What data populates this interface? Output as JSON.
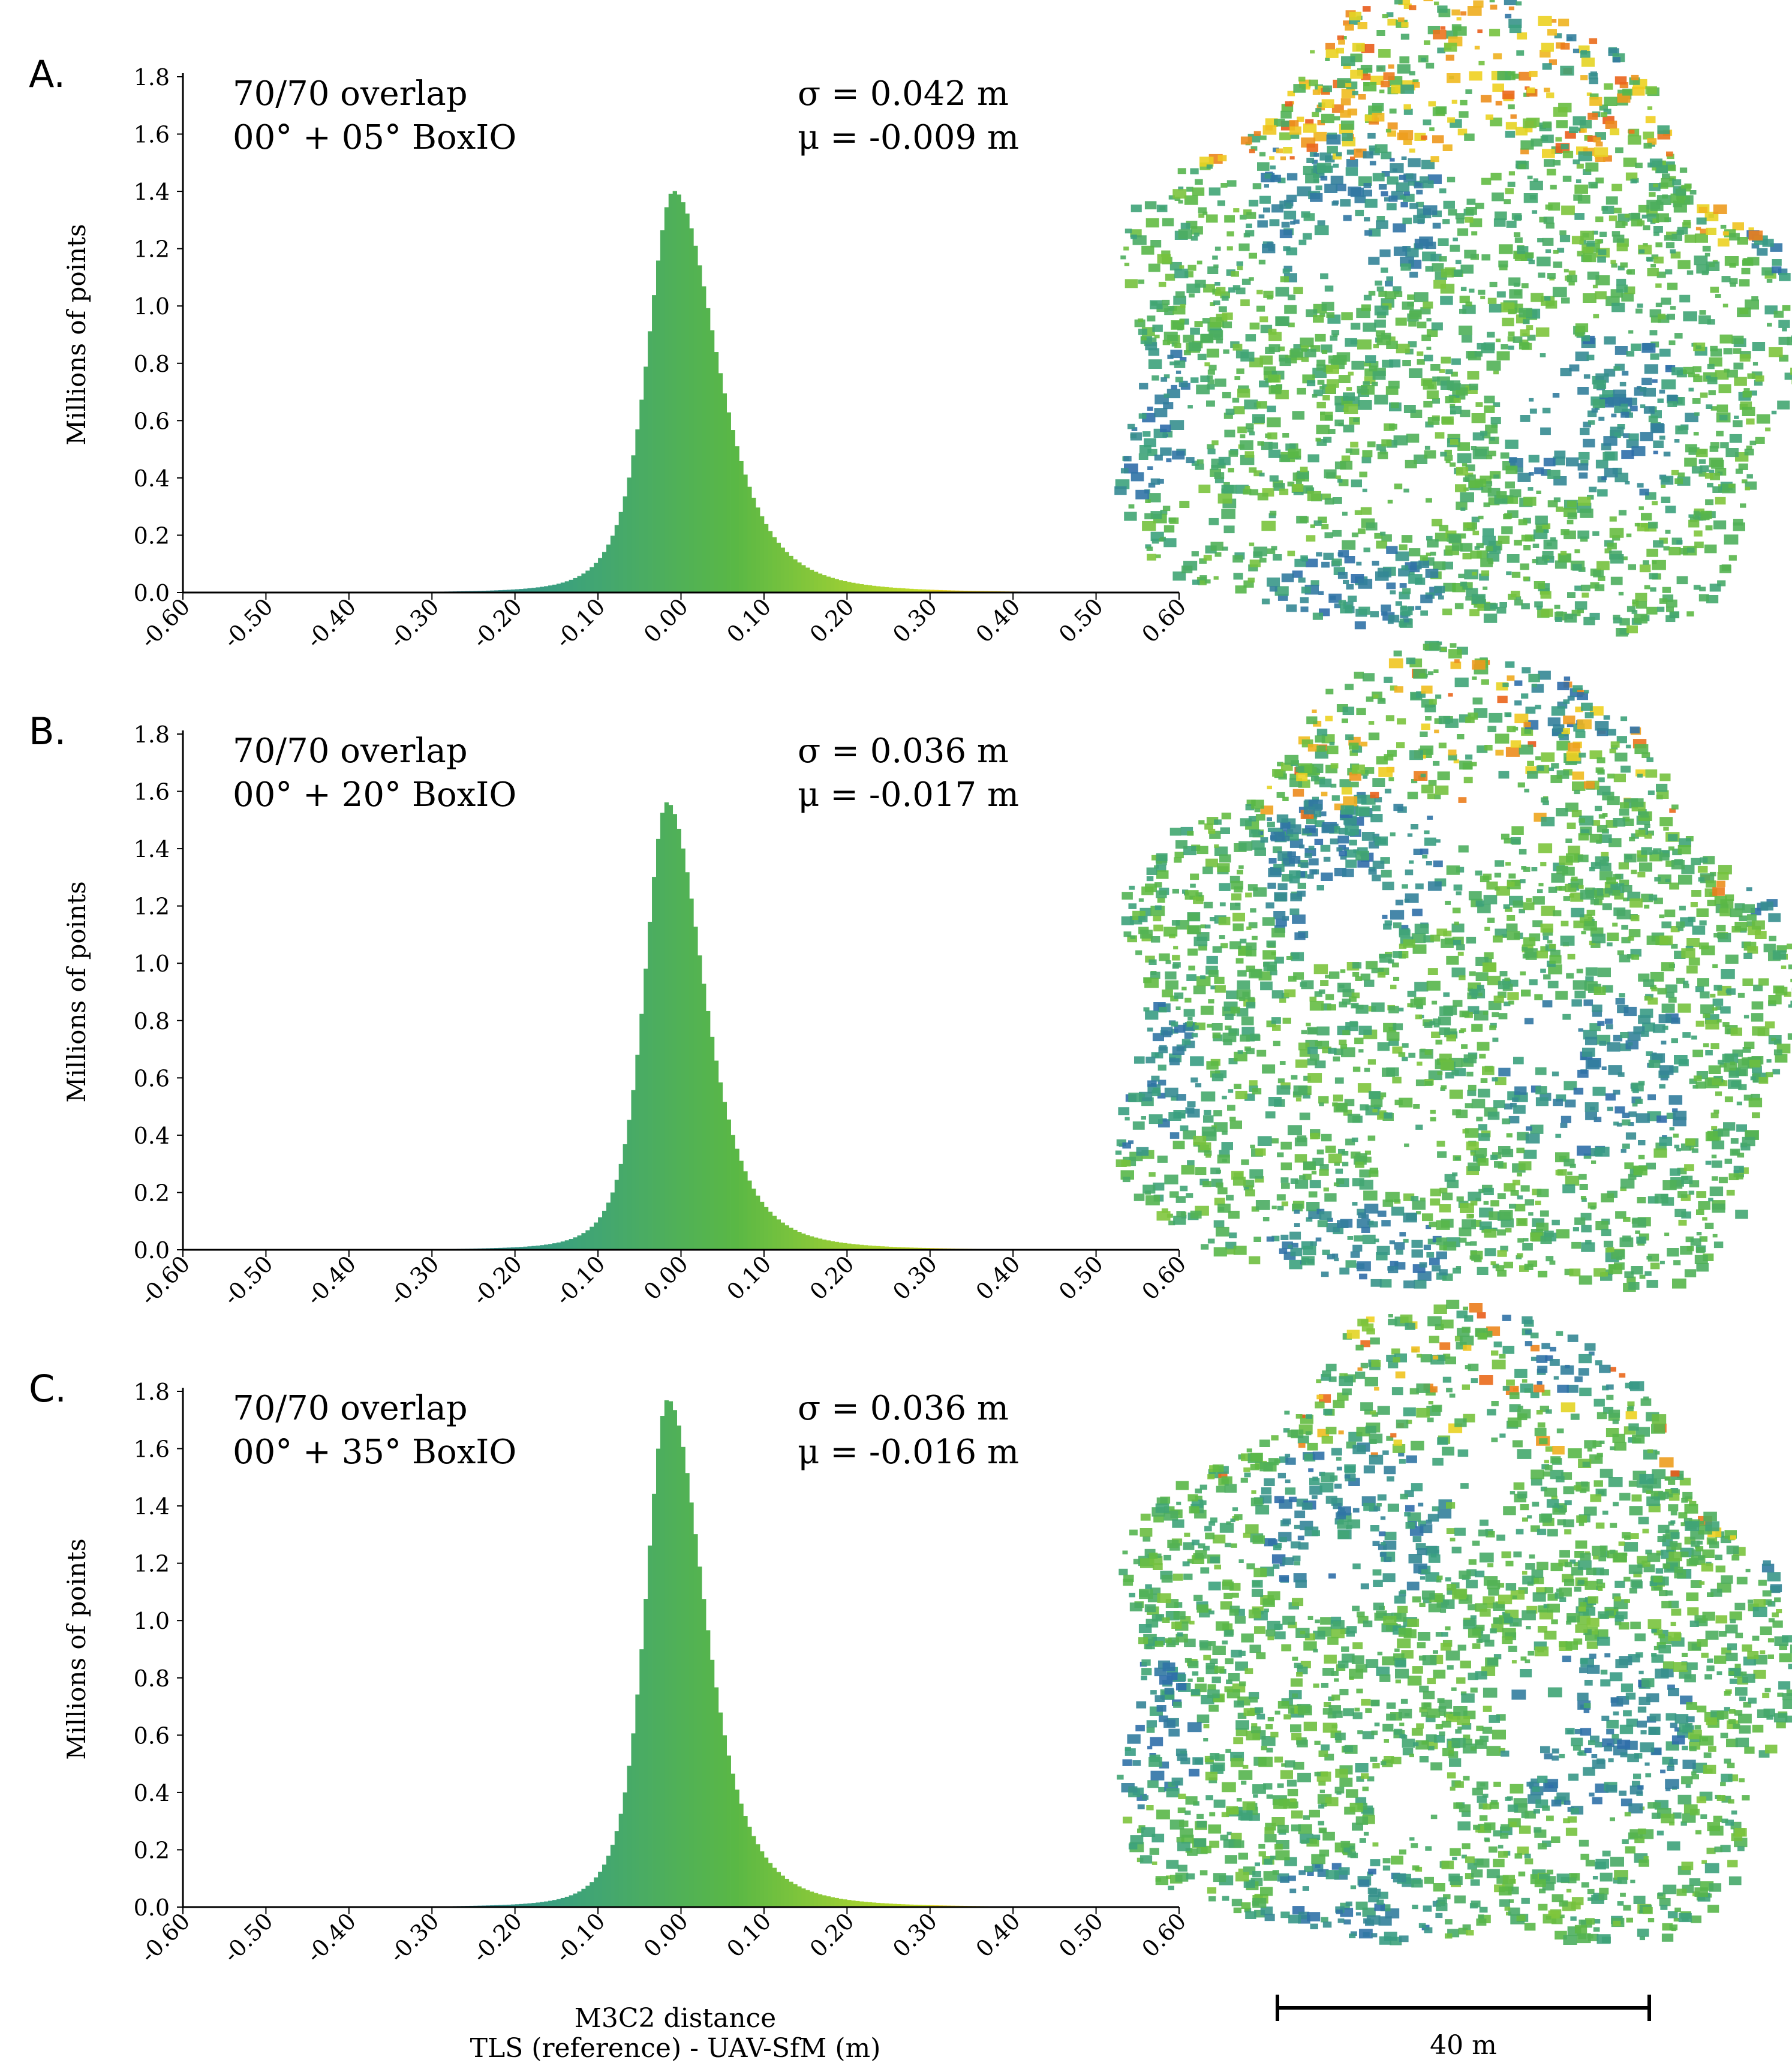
{
  "chart_data": [
    {
      "type": "bar",
      "panel_label": "A.",
      "title_line1": "70/70 overlap",
      "title_line2": "00° + 05° BoxIO",
      "stat_sigma": "σ = 0.042 m",
      "stat_mu": "μ = -0.009 m",
      "sigma": 0.042,
      "mu": -0.009,
      "peak": 1.39,
      "ylabel": "Millions of points",
      "xlim": [
        -0.6,
        0.6
      ],
      "ylim": [
        0,
        1.8
      ],
      "xticks": [
        "-0.60",
        "-0.50",
        "-0.40",
        "-0.30",
        "-0.20",
        "-0.10",
        "0.00",
        "0.10",
        "0.20",
        "0.30",
        "0.40",
        "0.50",
        "0.60"
      ],
      "yticks": [
        "0.0",
        "0.2",
        "0.4",
        "0.6",
        "0.8",
        "1.0",
        "1.2",
        "1.4",
        "1.6",
        "1.8"
      ],
      "bin_width": 0.005,
      "map_warmth": 1.0
    },
    {
      "type": "bar",
      "panel_label": "B.",
      "title_line1": "70/70 overlap",
      "title_line2": "00° + 20° BoxIO",
      "stat_sigma": "σ = 0.036 m",
      "stat_mu": "μ = -0.017 m",
      "sigma": 0.036,
      "mu": -0.017,
      "peak": 1.55,
      "ylabel": "Millions of points",
      "xlim": [
        -0.6,
        0.6
      ],
      "ylim": [
        0,
        1.8
      ],
      "xticks": [
        "-0.60",
        "-0.50",
        "-0.40",
        "-0.30",
        "-0.20",
        "-0.10",
        "0.00",
        "0.10",
        "0.20",
        "0.30",
        "0.40",
        "0.50",
        "0.60"
      ],
      "yticks": [
        "0.0",
        "0.2",
        "0.4",
        "0.6",
        "0.8",
        "1.0",
        "1.2",
        "1.4",
        "1.6",
        "1.8"
      ],
      "bin_width": 0.005,
      "map_warmth": 0.45
    },
    {
      "type": "bar",
      "panel_label": "C.",
      "title_line1": "70/70 overlap",
      "title_line2": "00° + 35° BoxIO",
      "stat_sigma": "σ = 0.036 m",
      "stat_mu": "μ = -0.016 m",
      "sigma": 0.036,
      "mu": -0.016,
      "peak": 1.76,
      "ylabel": "Millions of points",
      "xlim": [
        -0.6,
        0.6
      ],
      "ylim": [
        0,
        1.8
      ],
      "xticks": [
        "-0.60",
        "-0.50",
        "-0.40",
        "-0.30",
        "-0.20",
        "-0.10",
        "0.00",
        "0.10",
        "0.20",
        "0.30",
        "0.40",
        "0.50",
        "0.60"
      ],
      "yticks": [
        "0.0",
        "0.2",
        "0.4",
        "0.6",
        "0.8",
        "1.0",
        "1.2",
        "1.4",
        "1.6",
        "1.8"
      ],
      "bin_width": 0.005,
      "map_warmth": 0.3
    }
  ],
  "xlabel_line1": "M3C2 distance",
  "xlabel_line2": "TLS (reference) - UAV-SfM (m)",
  "scale_bar_label": "40 m",
  "colors": {
    "ramp": [
      "#2b2a8c",
      "#2f6eaa",
      "#3aa080",
      "#5ab845",
      "#c4dd2a",
      "#f0d020",
      "#e84a1a"
    ],
    "axis": "#000000"
  }
}
